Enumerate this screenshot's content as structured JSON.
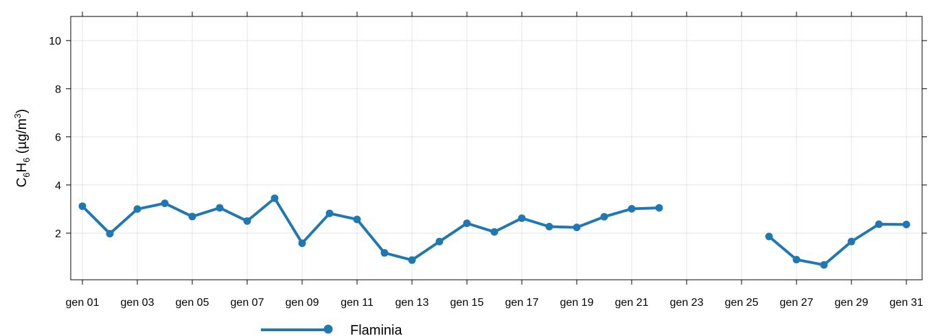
{
  "chart_data": {
    "type": "line",
    "x_labels": [
      "gen 01",
      "gen 03",
      "gen 05",
      "gen 07",
      "gen 09",
      "gen 11",
      "gen 13",
      "gen 15",
      "gen 17",
      "gen 19",
      "gen 21",
      "gen 23",
      "gen 25",
      "gen 27",
      "gen 29",
      "gen 31"
    ],
    "y_ticks": [
      "2",
      "4",
      "6",
      "8",
      "10"
    ],
    "ylabel": {
      "main": "C",
      "sub1": "6",
      "mid": "H",
      "sub2": "6",
      "unit_open": " (µg/m",
      "sup": "3",
      "unit_close": ")"
    },
    "xlim": [
      1,
      31
    ],
    "ylim": [
      0,
      11
    ],
    "grid": true,
    "legend_position": "bottom",
    "series": [
      {
        "name": "Flaminia",
        "color": "#1f77b4",
        "points": [
          [
            1,
            3.12
          ],
          [
            2,
            1.98
          ],
          [
            3,
            3.0
          ],
          [
            4,
            3.24
          ],
          [
            5,
            2.69
          ],
          [
            6,
            3.05
          ],
          [
            7,
            2.5
          ],
          [
            8,
            3.45
          ],
          [
            9,
            1.58
          ],
          [
            10,
            2.82
          ],
          [
            11,
            2.57
          ],
          [
            12,
            1.18
          ],
          [
            13,
            0.88
          ],
          [
            14,
            1.65
          ],
          [
            15,
            2.41
          ],
          [
            16,
            2.05
          ],
          [
            17,
            2.62
          ],
          [
            18,
            2.27
          ],
          [
            19,
            2.24
          ],
          [
            20,
            2.68
          ],
          [
            21,
            3.01
          ],
          [
            22,
            3.05
          ],
          null,
          null,
          null,
          [
            26,
            1.86
          ],
          [
            27,
            0.9
          ],
          [
            28,
            0.68
          ],
          [
            29,
            1.65
          ],
          [
            30,
            2.37
          ],
          [
            31,
            2.36
          ]
        ]
      }
    ]
  }
}
